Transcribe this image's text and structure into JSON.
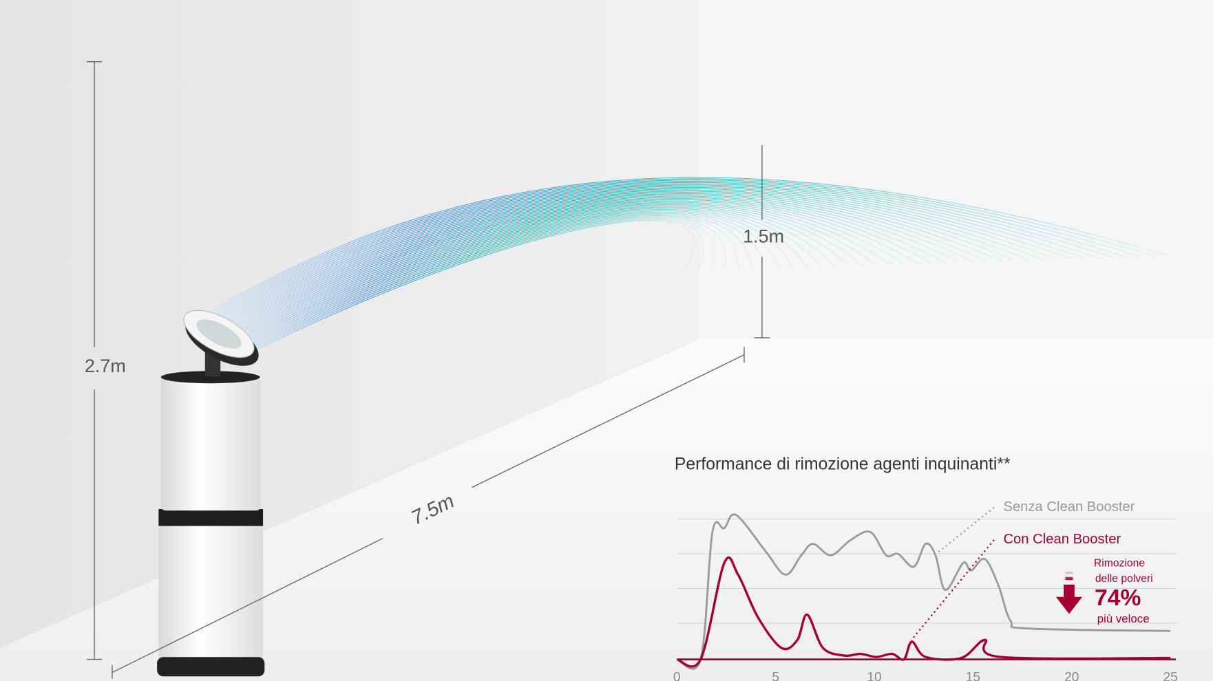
{
  "scene": {
    "height_label": "2.7m",
    "arc_height_label": "1.5m",
    "distance_label": "7.5m"
  },
  "chart_data": {
    "type": "line",
    "title": "Performance di rimozione agenti inquinanti**",
    "xlim": [
      0,
      25
    ],
    "xticks": [
      0,
      5,
      10,
      15,
      20,
      25
    ],
    "ylim": [
      0,
      4.2
    ],
    "series": [
      {
        "name": "Senza Clean Booster",
        "color": "#9a9a9a",
        "x": [
          0,
          1.2,
          1.8,
          2.4,
          3.0,
          4.5,
          5.5,
          6.3,
          6.9,
          7.8,
          8.8,
          9.8,
          10.6,
          11.2,
          12.0,
          12.6,
          13.1,
          13.6,
          14.5,
          14.9,
          15.6,
          16.3,
          16.9,
          17.8,
          25
        ],
        "values": [
          0,
          0,
          3.67,
          3.78,
          4.16,
          3.11,
          2.44,
          3.0,
          3.33,
          3.0,
          3.44,
          3.67,
          3.0,
          3.04,
          2.67,
          3.33,
          3.0,
          2.0,
          2.78,
          2.56,
          2.89,
          2.11,
          1.11,
          0.89,
          0.82
        ]
      },
      {
        "name": "Con Clean Booster",
        "color": "#a50034",
        "x": [
          0,
          1.2,
          2.4,
          3.1,
          4.1,
          5.3,
          6.1,
          6.6,
          7.4,
          8.5,
          9.3,
          10.1,
          10.9,
          11.5,
          11.9,
          12.6,
          14.4,
          15.6,
          16.4,
          25
        ],
        "values": [
          0,
          0,
          2.78,
          2.44,
          1.22,
          0.33,
          0.56,
          1.29,
          0.33,
          0.11,
          0.16,
          0.07,
          0.16,
          0,
          0.51,
          0.07,
          0.04,
          0.56,
          0.07,
          0.04
        ]
      }
    ],
    "annotation": [
      "Rimozione",
      "delle polveri",
      "74%",
      "più veloce"
    ]
  }
}
